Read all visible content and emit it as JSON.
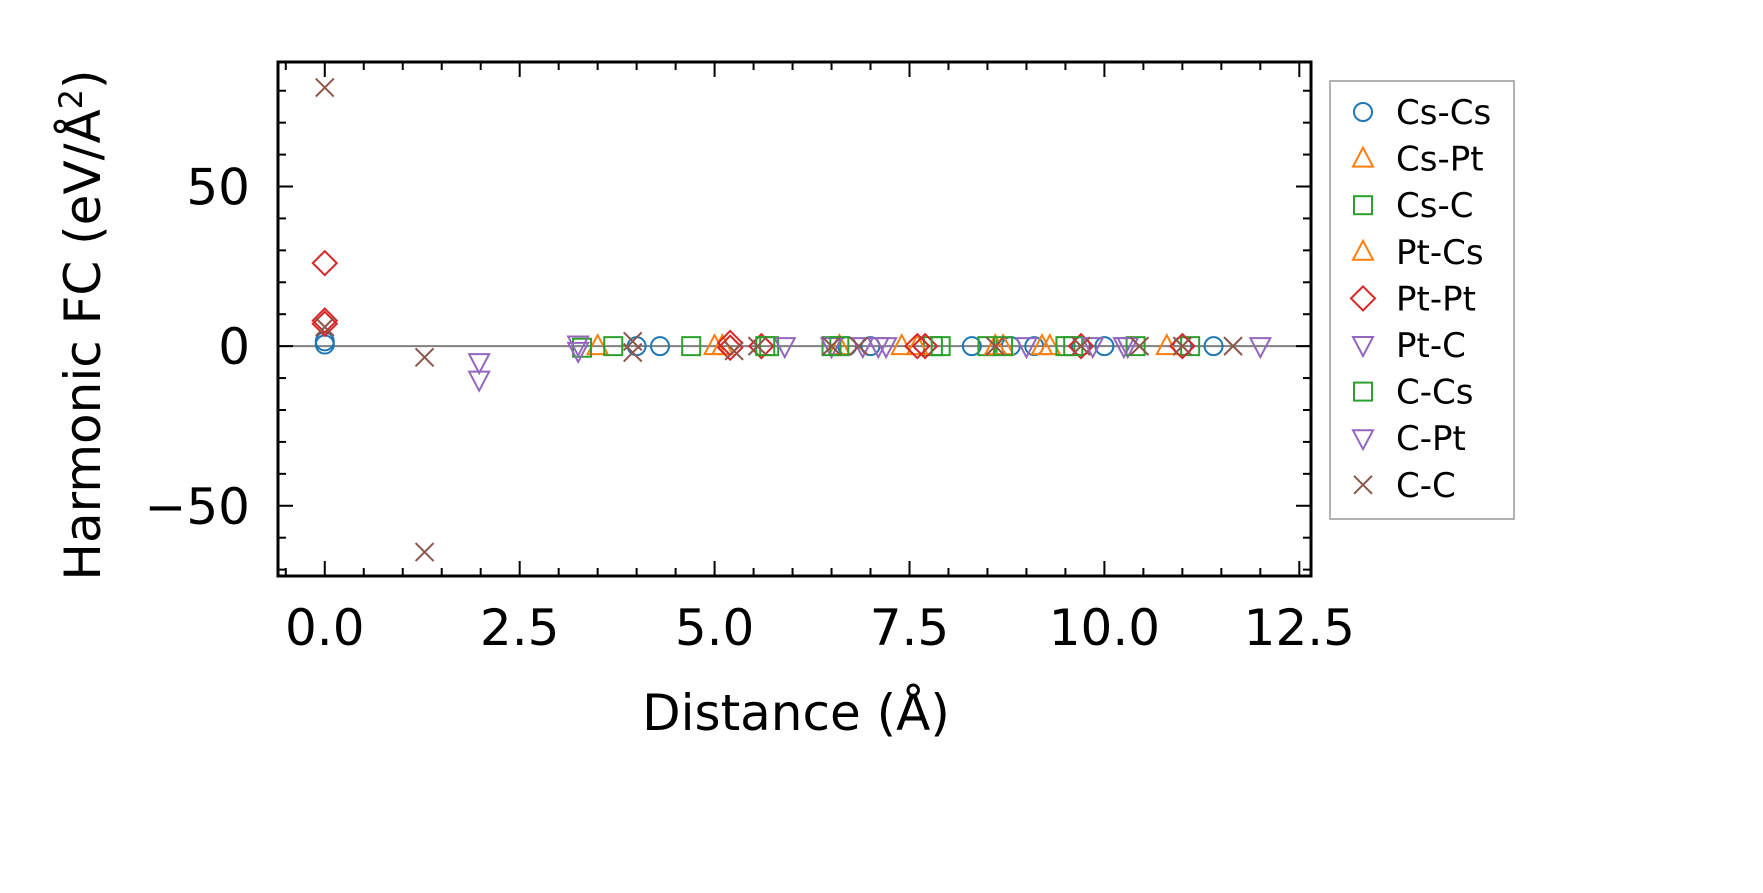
{
  "chart_data": {
    "type": "scatter",
    "xlabel": "Distance (Å)",
    "ylabel_main": "Harmonic FC (eV/Å",
    "ylabel_sup": "2",
    "ylabel_end": ")",
    "xlim": [
      -0.6,
      12.65
    ],
    "ylim": [
      -72,
      89
    ],
    "xticks": [
      0.0,
      2.5,
      5.0,
      7.5,
      10.0,
      12.5
    ],
    "xtick_labels": [
      "0.0",
      "2.5",
      "5.0",
      "7.5",
      "10.0",
      "12.5"
    ],
    "yticks": [
      -50,
      0,
      50
    ],
    "ytick_labels": [
      "−50",
      "0",
      "50"
    ],
    "zero_line": true,
    "grid": false,
    "legend_position": "right-outside",
    "series": [
      {
        "name": "Cs-Cs",
        "marker": "circle",
        "color": "#1f77b4",
        "x": [
          0.0,
          0.0,
          4.0,
          4.3,
          6.7,
          7.0,
          8.3,
          8.8,
          9.1,
          9.7,
          10.0,
          11.0,
          11.4
        ],
        "y": [
          1.5,
          0.5,
          0,
          0,
          0,
          0,
          0,
          0,
          0,
          0,
          0,
          0,
          0
        ]
      },
      {
        "name": "Cs-Pt",
        "marker": "triangle-up",
        "color": "#ff7f0e",
        "x": [
          3.5,
          5.0,
          6.6,
          7.4,
          8.7,
          9.3,
          10.8
        ],
        "y": [
          0,
          0,
          0,
          0,
          0,
          0,
          0
        ]
      },
      {
        "name": "Cs-C",
        "marker": "square",
        "color": "#2ca02c",
        "x": [
          3.3,
          3.7,
          4.7,
          5.7,
          6.5,
          7.8,
          8.5,
          9.5,
          11.1
        ],
        "y": [
          -0.5,
          0,
          0,
          0,
          0,
          0,
          0,
          0,
          0
        ]
      },
      {
        "name": "Pt-Cs",
        "marker": "triangle-up",
        "color": "#ff7f0e",
        "x": [
          5.1,
          7.6,
          8.6,
          9.2
        ],
        "y": [
          0,
          0,
          0,
          0
        ]
      },
      {
        "name": "Pt-Pt",
        "marker": "diamond",
        "color": "#d62728",
        "x": [
          0.0,
          0.0,
          0.0,
          5.2,
          5.2,
          5.6,
          7.6,
          7.7,
          9.7,
          11.0
        ],
        "y": [
          26,
          8,
          7,
          1,
          -0.5,
          0,
          0,
          0,
          0,
          0
        ]
      },
      {
        "name": "Pt-C",
        "marker": "triangle-down",
        "color": "#9467bd",
        "x": [
          1.98,
          1.98,
          3.25,
          3.25,
          5.9,
          6.5,
          7.2,
          9.0,
          10.3,
          12.0
        ],
        "y": [
          -5,
          -10.5,
          0.5,
          -1.5,
          0,
          0,
          0,
          0,
          0,
          0
        ]
      },
      {
        "name": "C-Cs",
        "marker": "square",
        "color": "#2ca02c",
        "x": [
          5.65,
          6.6,
          7.9,
          8.7,
          9.6,
          10.4
        ],
        "y": [
          0,
          0,
          0,
          0,
          0,
          0
        ]
      },
      {
        "name": "C-Pt",
        "marker": "triangle-down",
        "color": "#9467bd",
        "x": [
          6.9,
          7.1,
          9.85,
          10.25
        ],
        "y": [
          0,
          0,
          0,
          0
        ]
      },
      {
        "name": "C-C",
        "marker": "x",
        "color": "#8c564b",
        "x": [
          0.0,
          0.0,
          1.28,
          1.28,
          3.95,
          3.95,
          5.25,
          5.55,
          6.5,
          6.85,
          8.6,
          9.7,
          10.45,
          11.0,
          11.65
        ],
        "y": [
          81,
          6,
          -3.5,
          -64.5,
          1.5,
          -2,
          -1.5,
          0,
          0,
          0,
          0,
          0,
          0,
          0,
          0
        ]
      }
    ]
  }
}
